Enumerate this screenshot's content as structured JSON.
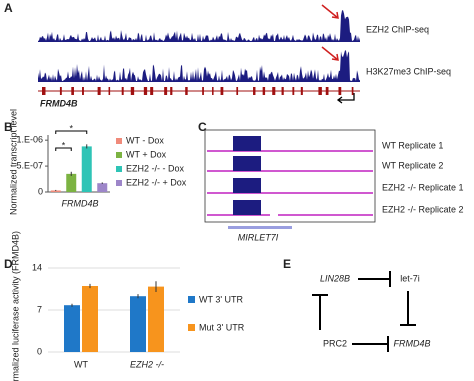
{
  "panel_labels": [
    "A",
    "B",
    "C",
    "D",
    "E"
  ],
  "panel_a": {
    "tracks": [
      "EZH2 ChIP-seq",
      "H3K27me3 ChIP-seq"
    ],
    "gene": "FRMD4B"
  },
  "chart_data": [
    {
      "type": "bar",
      "y_label": "Normalized transcript level",
      "x_label": "FRMD4B",
      "categories": [
        "WT - Dox",
        "WT + Dox",
        "EZH2 -/- - Dox",
        "EZH2 -/- + Dox"
      ],
      "values": [
        3e-08,
        3.5e-07,
        8.8e-07,
        1.7e-07
      ],
      "errors": [
        1e-08,
        4e-08,
        4e-08,
        1.5e-08
      ],
      "colors": [
        "#f08a7a",
        "#7cb342",
        "#2ec4b6",
        "#9d86c9"
      ],
      "ylim": [
        0,
        1.1e-06
      ],
      "yticks": [
        0,
        {
          "value": 5e-07,
          "label": "5.E-07"
        },
        {
          "value": 1e-06,
          "label": "1.E-06"
        }
      ],
      "annotations": [
        "*",
        "*"
      ]
    },
    {
      "type": "grouped_bar",
      "y_label": "Normalized luciferase activity (FRMD4B)",
      "categories": [
        "WT",
        "EZH2 -/-"
      ],
      "series": [
        {
          "name": "WT 3' UTR",
          "color": "#1f78c8",
          "values": [
            7.8,
            9.3
          ],
          "errors": [
            0.25,
            0.35
          ]
        },
        {
          "name": "Mut 3' UTR",
          "color": "#f7941d",
          "values": [
            11,
            10.9
          ],
          "errors": [
            0.35,
            0.9
          ]
        }
      ],
      "ylim": [
        0,
        14
      ],
      "yticks": [
        0,
        7,
        14
      ]
    }
  ],
  "panel_c": {
    "tracks": [
      "WT Replicate 1",
      "WT Replicate 2",
      "EZH2 -/- Replicate 1",
      "EZH2 -/- Replicate 2"
    ],
    "gene": "MIRLET7I"
  },
  "panel_e": {
    "nodes": [
      "LIN28B",
      "let-7i",
      "PRC2",
      "FRMD4B"
    ]
  }
}
